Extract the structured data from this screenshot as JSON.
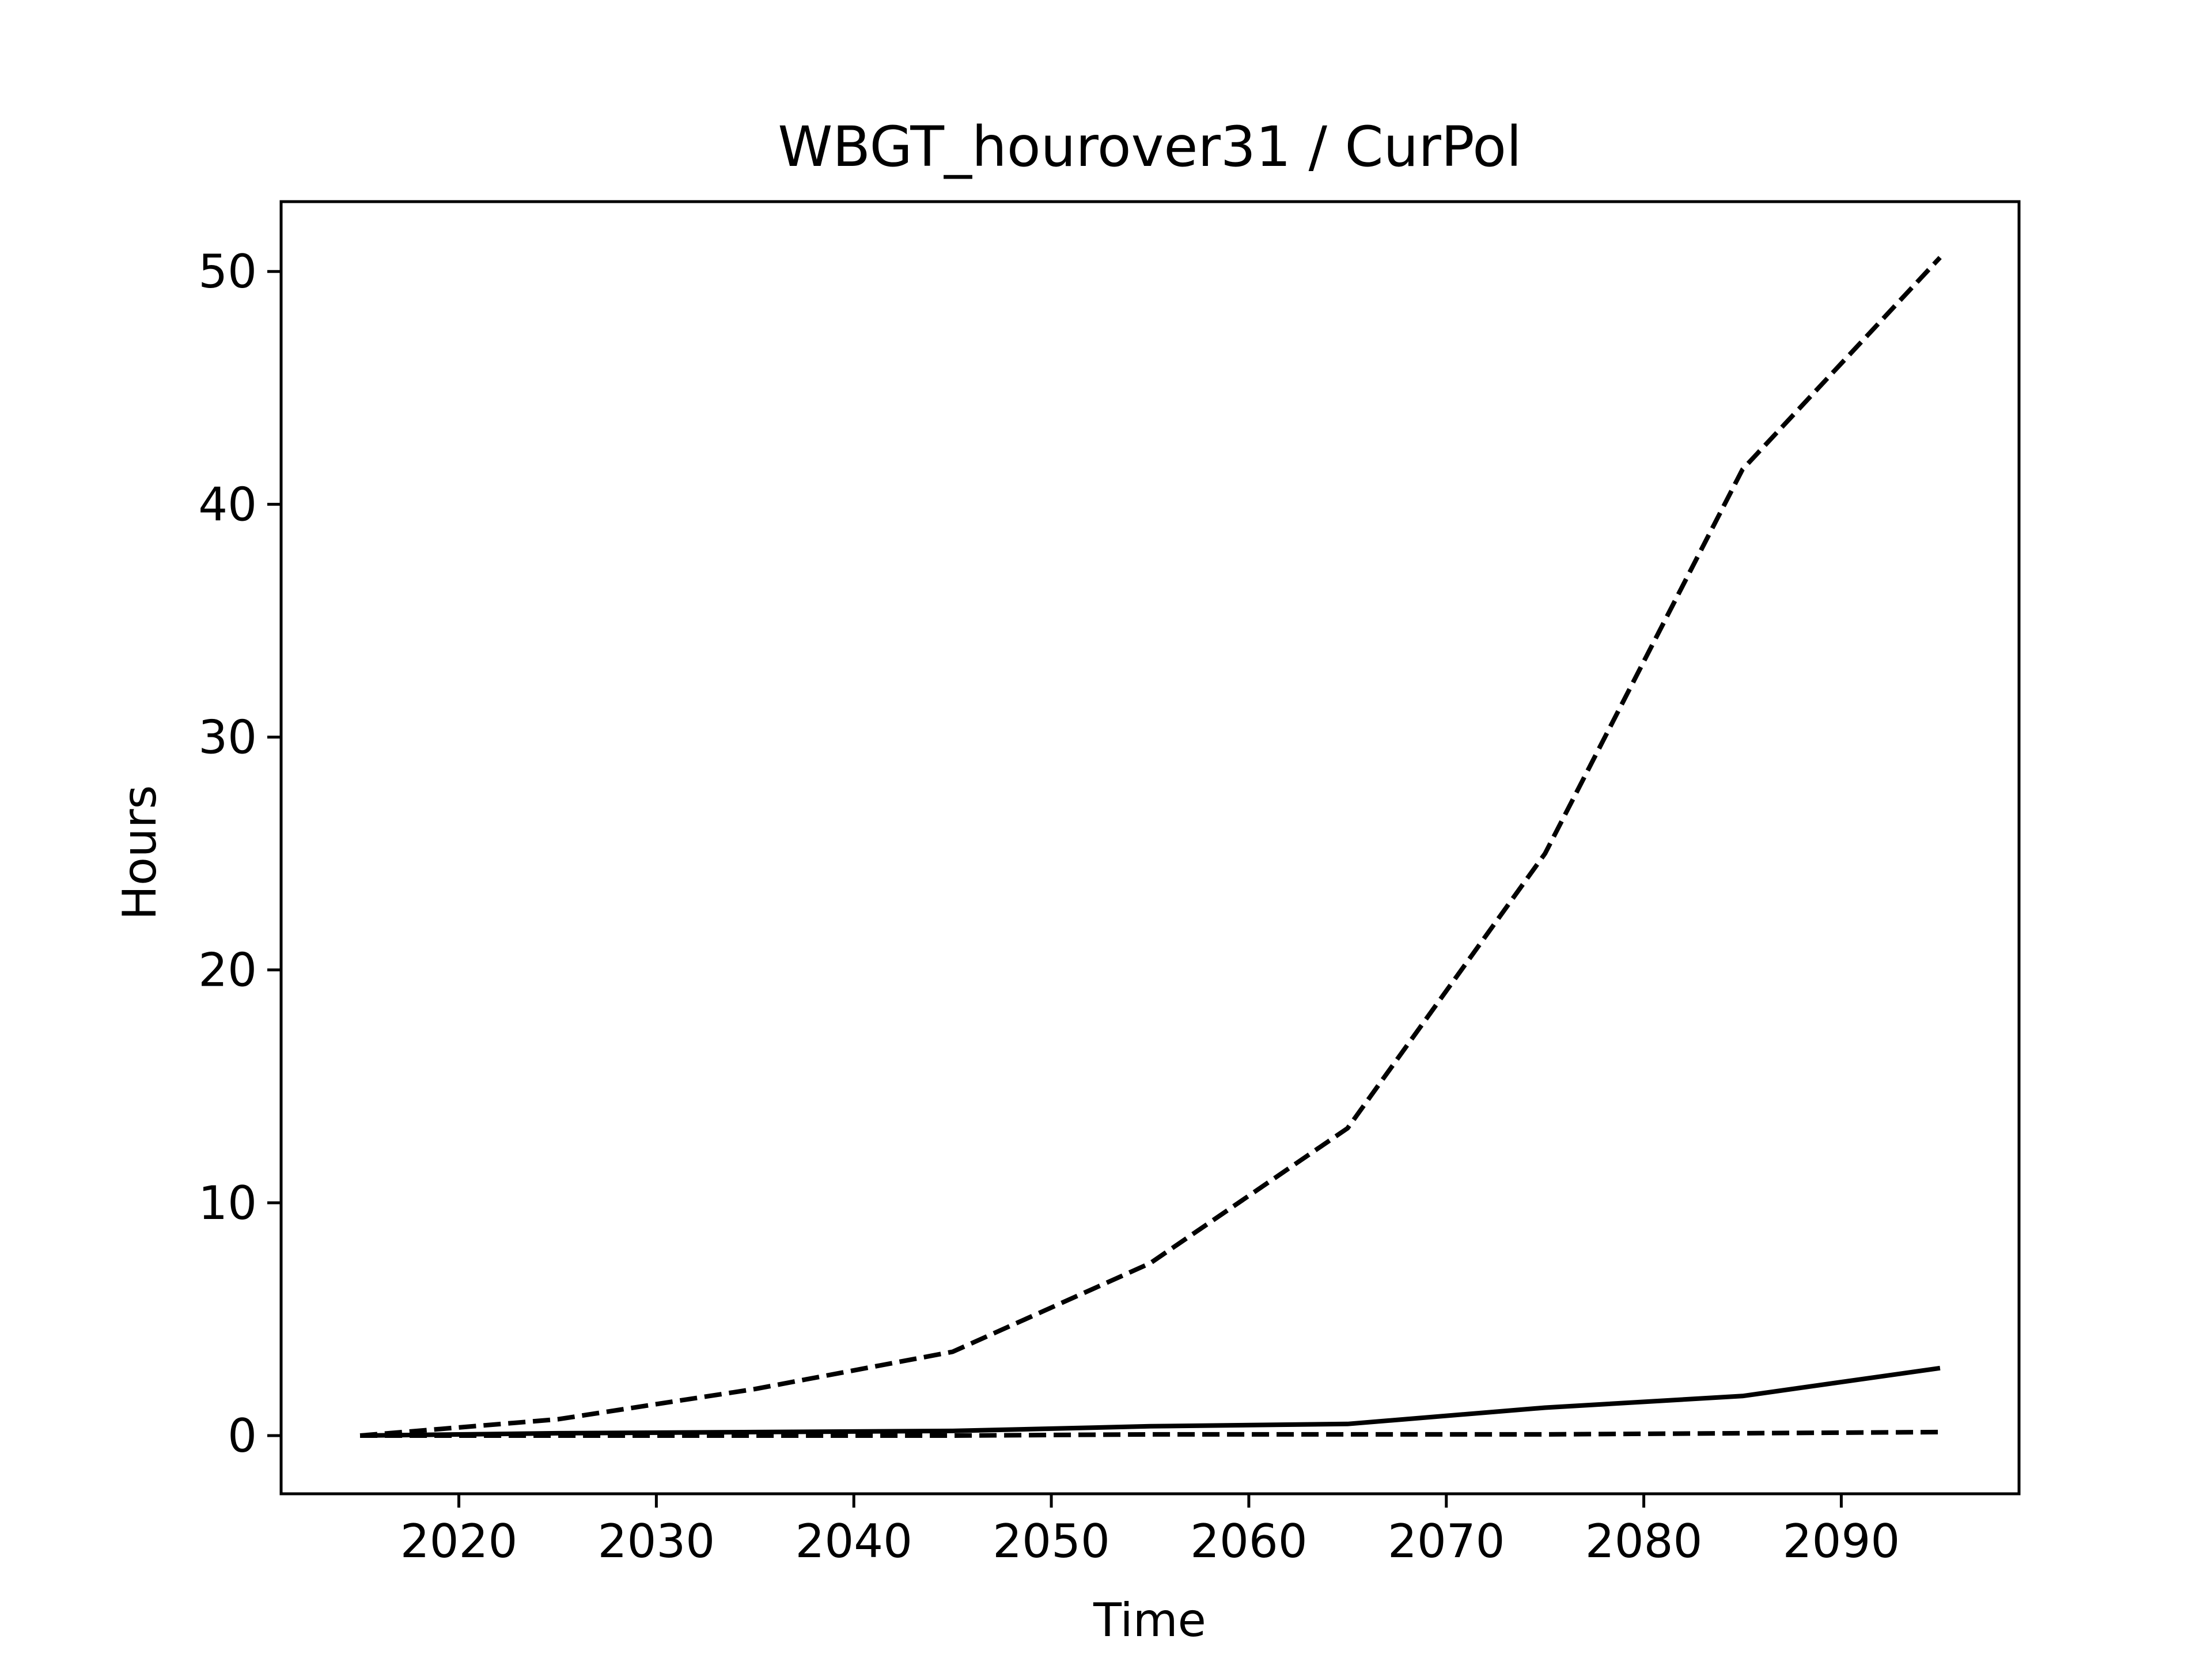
{
  "chart_data": {
    "type": "line",
    "title": "WBGT_hourover31 / CurPol",
    "xlabel": "Time",
    "ylabel": "Hours",
    "xlim": [
      2011,
      2099
    ],
    "ylim": [
      -2.5,
      53
    ],
    "xticks": [
      2020,
      2030,
      2040,
      2050,
      2060,
      2070,
      2080,
      2090
    ],
    "yticks": [
      0,
      10,
      20,
      30,
      40,
      50
    ],
    "grid": false,
    "legend": "none",
    "line_color": "#000000",
    "series": [
      {
        "style": "dashed",
        "x": [
          2015,
          2025,
          2035,
          2045,
          2055,
          2065,
          2075,
          2085,
          2095
        ],
        "y": [
          0.0,
          0.7,
          2.0,
          3.6,
          7.4,
          13.2,
          25.0,
          41.5,
          50.6
        ]
      },
      {
        "style": "solid",
        "x": [
          2015,
          2025,
          2035,
          2045,
          2055,
          2065,
          2075,
          2085,
          2095
        ],
        "y": [
          0.0,
          0.1,
          0.15,
          0.2,
          0.4,
          0.5,
          1.2,
          1.7,
          2.9
        ]
      },
      {
        "style": "dashed",
        "x": [
          2015,
          2025,
          2035,
          2045,
          2055,
          2065,
          2075,
          2085,
          2095
        ],
        "y": [
          0.0,
          0.0,
          0.0,
          0.0,
          0.05,
          0.05,
          0.05,
          0.1,
          0.15
        ]
      }
    ]
  }
}
